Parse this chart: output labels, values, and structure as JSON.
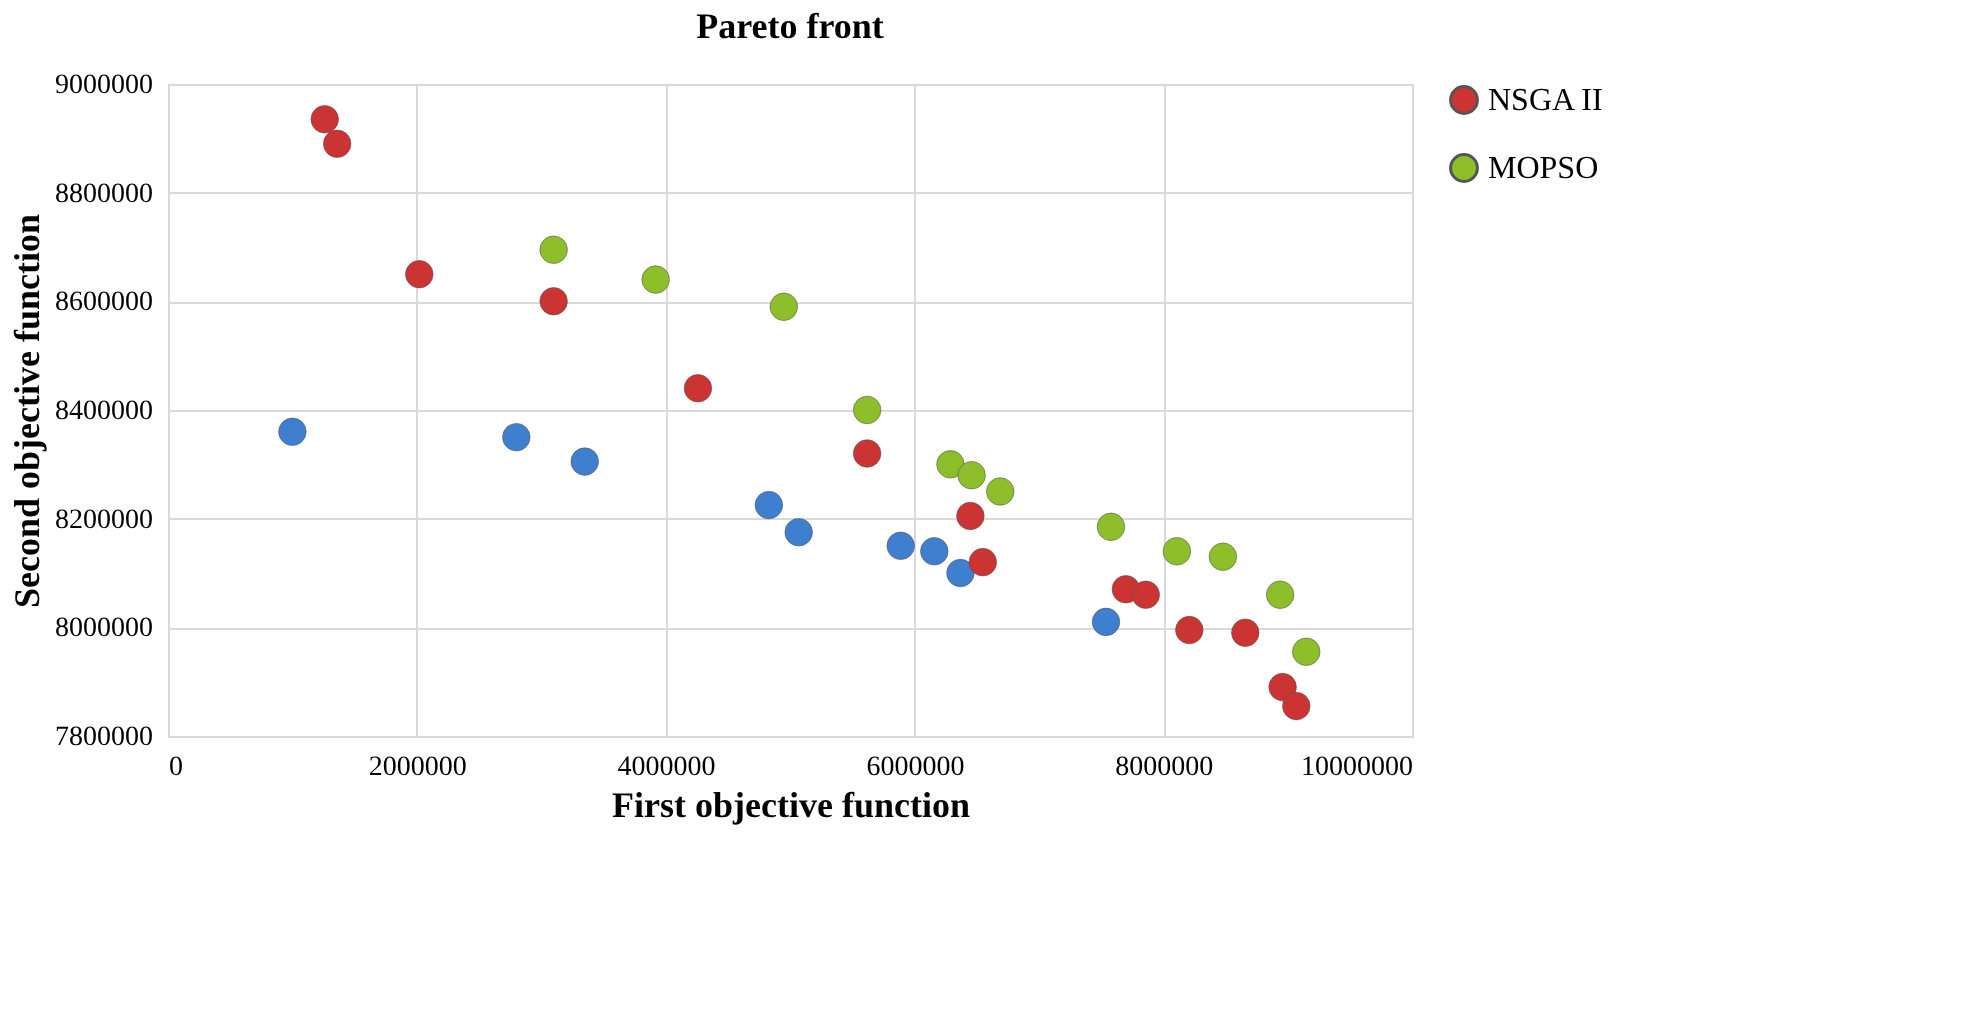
{
  "chart_data": {
    "type": "scatter",
    "title": "Pareto front",
    "xlabel": "First objective function",
    "ylabel": "Second objective function",
    "xlim": [
      0,
      10000000
    ],
    "xticks": [
      0,
      2000000,
      4000000,
      6000000,
      8000000,
      10000000
    ],
    "ylim": [
      7800000,
      9000000
    ],
    "yticks": [
      7800000,
      8000000,
      8200000,
      8400000,
      8600000,
      8800000,
      9000000
    ],
    "grid": true,
    "legend": "right",
    "marker": "circle",
    "series": [
      {
        "color": "#3f7fcf",
        "x": [
          1000000,
          2800000,
          3350000,
          4830000,
          5070000,
          5890000,
          6160000,
          6370000,
          7540000
        ],
        "values": [
          8360000,
          8350000,
          8305000,
          8225000,
          8175000,
          8150000,
          8140000,
          8100000,
          8010000
        ]
      },
      {
        "name": "NSGA II",
        "color": "#cc3333",
        "x": [
          1260000,
          1360000,
          2020000,
          3100000,
          4260000,
          5620000,
          6450000,
          6550000,
          7700000,
          7860000,
          8210000,
          8660000,
          8960000,
          9070000
        ],
        "values": [
          8935000,
          8890000,
          8650000,
          8600000,
          8440000,
          8320000,
          8205000,
          8120000,
          8070000,
          8060000,
          7995000,
          7990000,
          7890000,
          7855000
        ]
      },
      {
        "name": "MOPSO",
        "color": "#8cbf2a",
        "x": [
          3100000,
          3920000,
          4950000,
          5620000,
          6290000,
          6460000,
          6690000,
          7580000,
          8110000,
          8480000,
          8940000,
          9150000
        ],
        "values": [
          8695000,
          8640000,
          8590000,
          8400000,
          8300000,
          8280000,
          8250000,
          8185000,
          8140000,
          8130000,
          8060000,
          7955000
        ]
      }
    ]
  }
}
